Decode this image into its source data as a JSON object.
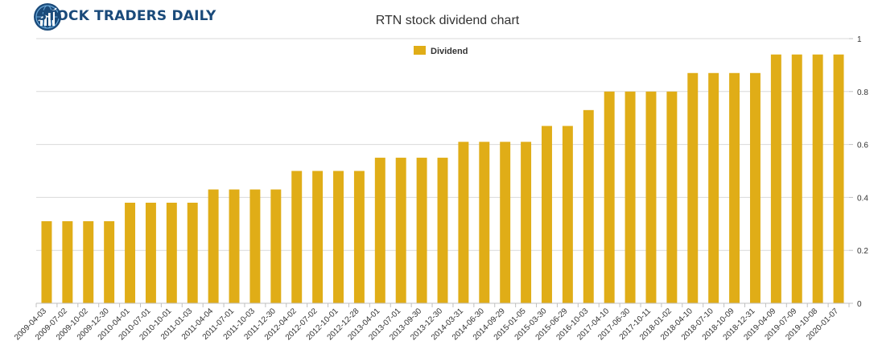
{
  "brand": {
    "name": "STOCK TRADERS DAILY",
    "colors": {
      "primary": "#1a4a7a",
      "accent": "#6aa8d8"
    }
  },
  "chart_data": {
    "type": "bar",
    "title": "RTN stock dividend chart",
    "xlabel": "",
    "ylabel": "",
    "legend_position": "top-center",
    "grid": true,
    "ylim": [
      0,
      1
    ],
    "yticks": [
      0,
      0.2,
      0.4,
      0.6,
      0.8,
      1
    ],
    "ytick_labels": [
      "0",
      "0.2",
      "0.4",
      "0.6",
      "0.8",
      "1"
    ],
    "bar_color": "#e0ad17",
    "categories": [
      "2009-04-03",
      "2009-07-02",
      "2009-10-02",
      "2009-12-30",
      "2010-04-01",
      "2010-07-01",
      "2010-10-01",
      "2011-01-03",
      "2011-04-04",
      "2011-07-01",
      "2011-10-03",
      "2011-12-30",
      "2012-04-02",
      "2012-07-02",
      "2012-10-01",
      "2012-12-28",
      "2013-04-01",
      "2013-07-01",
      "2013-09-30",
      "2013-12-30",
      "2014-03-31",
      "2014-06-30",
      "2014-09-29",
      "2015-01-05",
      "2015-03-30",
      "2015-06-29",
      "2016-10-03",
      "2017-04-10",
      "2017-06-30",
      "2017-10-11",
      "2018-01-02",
      "2018-04-10",
      "2018-07-10",
      "2018-10-09",
      "2018-12-31",
      "2019-04-09",
      "2019-07-09",
      "2019-10-08",
      "2020-01-07"
    ],
    "series": [
      {
        "name": "Dividend",
        "values": [
          0.31,
          0.31,
          0.31,
          0.31,
          0.38,
          0.38,
          0.38,
          0.38,
          0.43,
          0.43,
          0.43,
          0.43,
          0.5,
          0.5,
          0.5,
          0.5,
          0.55,
          0.55,
          0.55,
          0.55,
          0.61,
          0.61,
          0.61,
          0.61,
          0.67,
          0.67,
          0.73,
          0.8,
          0.8,
          0.8,
          0.8,
          0.87,
          0.87,
          0.87,
          0.87,
          0.94,
          0.94,
          0.94,
          0.94
        ]
      }
    ]
  }
}
